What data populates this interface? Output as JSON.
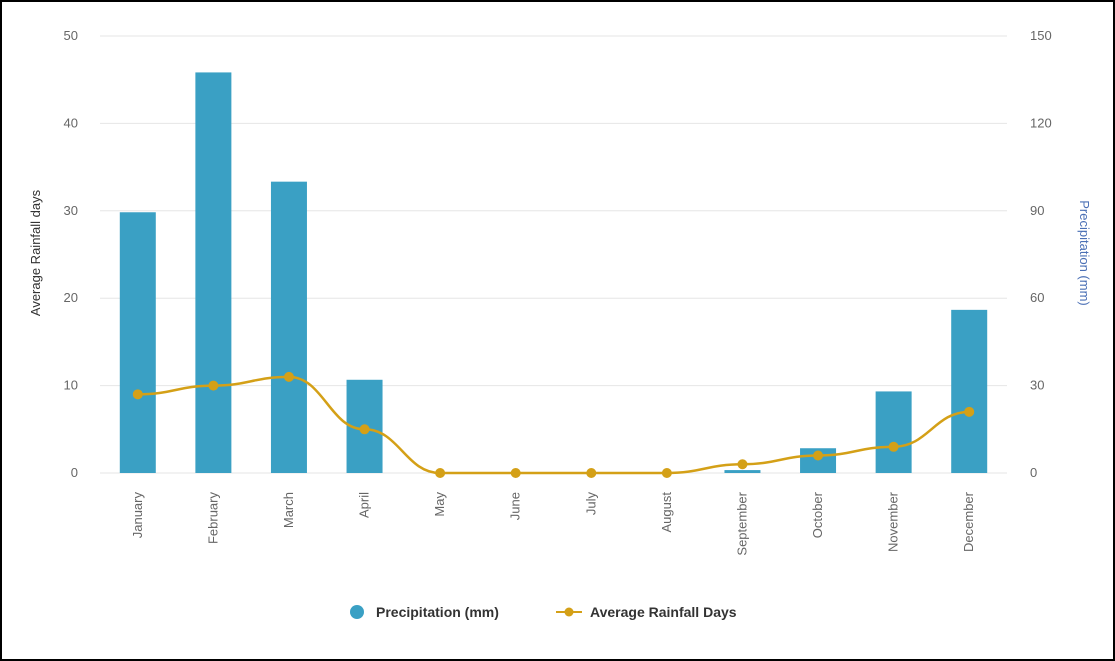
{
  "chart_data": {
    "type": "bar",
    "categories": [
      "January",
      "February",
      "March",
      "April",
      "May",
      "June",
      "July",
      "August",
      "September",
      "October",
      "November",
      "December"
    ],
    "series": [
      {
        "name": "Precipitation (mm)",
        "type": "bar",
        "axis": "right",
        "color": "#3aa0c4",
        "values": [
          89.5,
          137.5,
          100,
          32,
          0,
          0,
          0,
          0,
          1,
          8.5,
          28,
          56
        ]
      },
      {
        "name": "Average Rainfall Days",
        "type": "line",
        "axis": "left",
        "color": "#d4a017",
        "values": [
          9,
          10,
          11,
          5,
          0,
          0,
          0,
          0,
          1,
          2,
          3,
          7
        ]
      }
    ],
    "y_left": {
      "label": "Average Rainfall days",
      "ylim": [
        0,
        50
      ],
      "ticks": [
        0,
        10,
        20,
        30,
        40,
        50
      ]
    },
    "y_right": {
      "label": "Precipitation (mm)",
      "ylim": [
        0,
        150
      ],
      "ticks": [
        0,
        30,
        60,
        90,
        120,
        150
      ],
      "label_color": "#4a6fb5"
    },
    "grid": true,
    "legend_position": "bottom-center"
  }
}
